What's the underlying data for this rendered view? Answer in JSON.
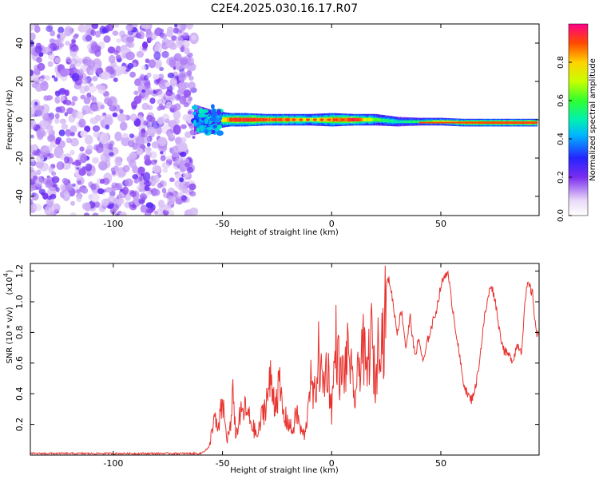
{
  "chart_data": [
    {
      "type": "heatmap",
      "title": "C2E4.2025.030.16.17.R07",
      "xlabel": "Height of straight line (km)",
      "ylabel": "Frequency (Hz)",
      "xlim": [
        -138,
        95
      ],
      "ylim": [
        -50,
        50
      ],
      "xticks": [
        "-100",
        "-50",
        "0",
        "50"
      ],
      "yticks": [
        "40",
        "20",
        "0",
        "-20",
        "-40"
      ],
      "noise_region_x": [
        -138,
        -63
      ],
      "signal_band": {
        "x": [
          -63,
          -55,
          -47,
          -40,
          -30,
          -20,
          -10,
          0,
          10,
          20,
          30,
          40,
          50,
          60,
          70,
          80,
          94
        ],
        "center_hz": [
          0,
          0,
          0,
          0,
          0,
          0,
          0,
          0,
          0,
          0,
          -1,
          -1,
          -1,
          -1.5,
          -1.5,
          -1.5,
          -1.5
        ],
        "half_width_hz": [
          8,
          5,
          3.5,
          3.5,
          3,
          3,
          3,
          3.5,
          3,
          3,
          2.5,
          2,
          2,
          2,
          2,
          2,
          2
        ],
        "peak_amplitude": [
          0.3,
          0.5,
          0.9,
          0.95,
          0.9,
          0.85,
          0.7,
          0.85,
          0.95,
          0.6,
          0.5,
          0.55,
          0.7,
          0.85,
          0.9,
          0.95,
          0.95
        ]
      },
      "colorbar": {
        "label": "Normalized spectral amplitude",
        "ticks": [
          "0.0",
          "0.2",
          "0.4",
          "0.6",
          "0.8"
        ],
        "range": [
          0,
          1
        ]
      },
      "grid": false
    },
    {
      "type": "line",
      "xlabel": "Height of straight line (km)",
      "ylabel": "SNR (10 * v/v)",
      "y_multiplier": "(x10",
      "y_multiplier_exp": "4",
      "y_multiplier_close": ")",
      "xlim": [
        -138,
        95
      ],
      "ylim": [
        0,
        1.25
      ],
      "xticks": [
        "-100",
        "-50",
        "0",
        "50"
      ],
      "yticks": [
        "0.2",
        "0.4",
        "0.6",
        "0.8",
        "1.0",
        "1.2"
      ],
      "series": [
        {
          "color": "#e8322e",
          "x": [
            -138,
            -60,
            -56,
            -54,
            -52,
            -50,
            -48,
            -46,
            -45,
            -44,
            -42,
            -40,
            -38,
            -36,
            -34,
            -32,
            -30,
            -28,
            -26,
            -24,
            -22,
            -20,
            -18,
            -16,
            -14,
            -12,
            -10,
            -8,
            -6,
            -4,
            -2,
            0,
            2,
            4,
            6,
            8,
            10,
            12,
            14,
            16,
            18,
            20,
            22,
            24,
            25,
            26,
            27,
            28,
            30,
            32,
            34,
            36,
            38,
            40,
            42,
            44,
            46,
            48,
            50,
            52,
            53,
            54,
            56,
            58,
            60,
            62,
            64,
            66,
            68,
            70,
            72,
            73,
            75,
            77,
            79,
            81,
            83,
            85,
            87,
            88,
            89,
            90,
            92,
            93,
            94
          ],
          "values": [
            0.01,
            0.01,
            0.05,
            0.25,
            0.15,
            0.35,
            0.1,
            0.2,
            0.45,
            0.12,
            0.25,
            0.3,
            0.25,
            0.18,
            0.12,
            0.25,
            0.35,
            0.48,
            0.35,
            0.45,
            0.25,
            0.22,
            0.15,
            0.28,
            0.15,
            0.13,
            0.5,
            0.35,
            0.65,
            0.45,
            0.6,
            0.3,
            0.75,
            0.5,
            0.55,
            0.7,
            0.35,
            0.5,
            0.75,
            0.5,
            0.8,
            0.45,
            0.85,
            0.75,
            1.1,
            1.15,
            1.1,
            1.0,
            0.8,
            0.95,
            0.7,
            0.9,
            0.65,
            0.75,
            0.6,
            0.75,
            0.85,
            0.95,
            1.1,
            1.18,
            1.2,
            1.1,
            0.9,
            0.7,
            0.5,
            0.4,
            0.36,
            0.45,
            0.65,
            0.9,
            1.05,
            1.12,
            1.0,
            0.8,
            0.68,
            0.65,
            0.62,
            0.72,
            0.68,
            0.9,
            1.05,
            1.12,
            1.05,
            0.9,
            0.78
          ]
        }
      ],
      "grid": false
    }
  ]
}
